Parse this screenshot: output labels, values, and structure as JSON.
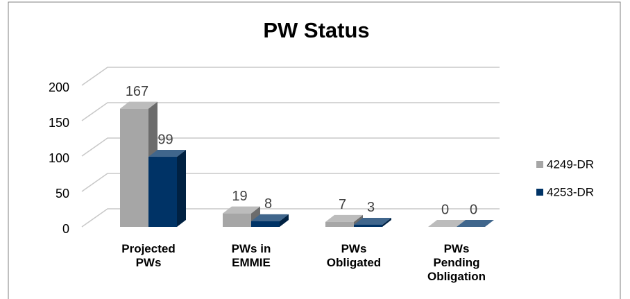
{
  "chart_data": {
    "type": "bar3d",
    "title": "PW Status",
    "categories": [
      "Projected PWs",
      "PWs in EMMIE",
      "PWs Obligated",
      "PWs Pending Obligation"
    ],
    "series": [
      {
        "name": "4249-DR",
        "color": "#a6a6a6",
        "values": [
          167,
          19,
          7,
          0
        ]
      },
      {
        "name": "4253-DR",
        "color": "#003366",
        "values": [
          99,
          8,
          3,
          0
        ]
      }
    ],
    "ylim": [
      0,
      200
    ],
    "yticks": [
      0,
      50,
      100,
      150,
      200
    ],
    "grid": true,
    "legend": "right"
  }
}
